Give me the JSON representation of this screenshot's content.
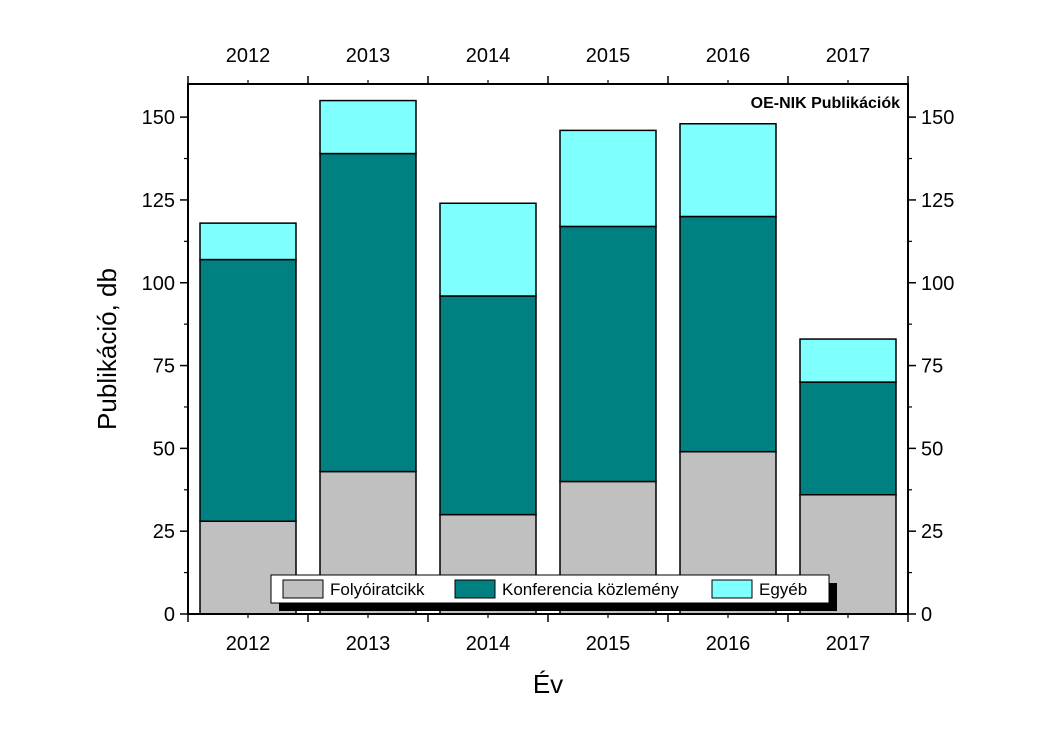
{
  "chart_data": {
    "type": "bar",
    "stacked": true,
    "title": "OE-NIK Publikációk",
    "xlabel": "Év",
    "ylabel": "Publikáció, db",
    "categories": [
      "2012",
      "2013",
      "2014",
      "2015",
      "2016",
      "2017"
    ],
    "ylim": [
      0,
      160
    ],
    "yticks": [
      0,
      25,
      50,
      75,
      100,
      125,
      150
    ],
    "legend_position": "bottom-center",
    "grid": false,
    "series": [
      {
        "name": "Folyóiratcikk",
        "color": "#c0c0c0",
        "values": [
          28,
          43,
          30,
          40,
          49,
          36
        ]
      },
      {
        "name": "Konferencia közlemény",
        "color": "#008080",
        "values": [
          79,
          96,
          66,
          77,
          71,
          34
        ]
      },
      {
        "name": "Egyéb",
        "color": "#80ffff",
        "values": [
          11,
          16,
          28,
          29,
          28,
          13
        ]
      }
    ]
  }
}
